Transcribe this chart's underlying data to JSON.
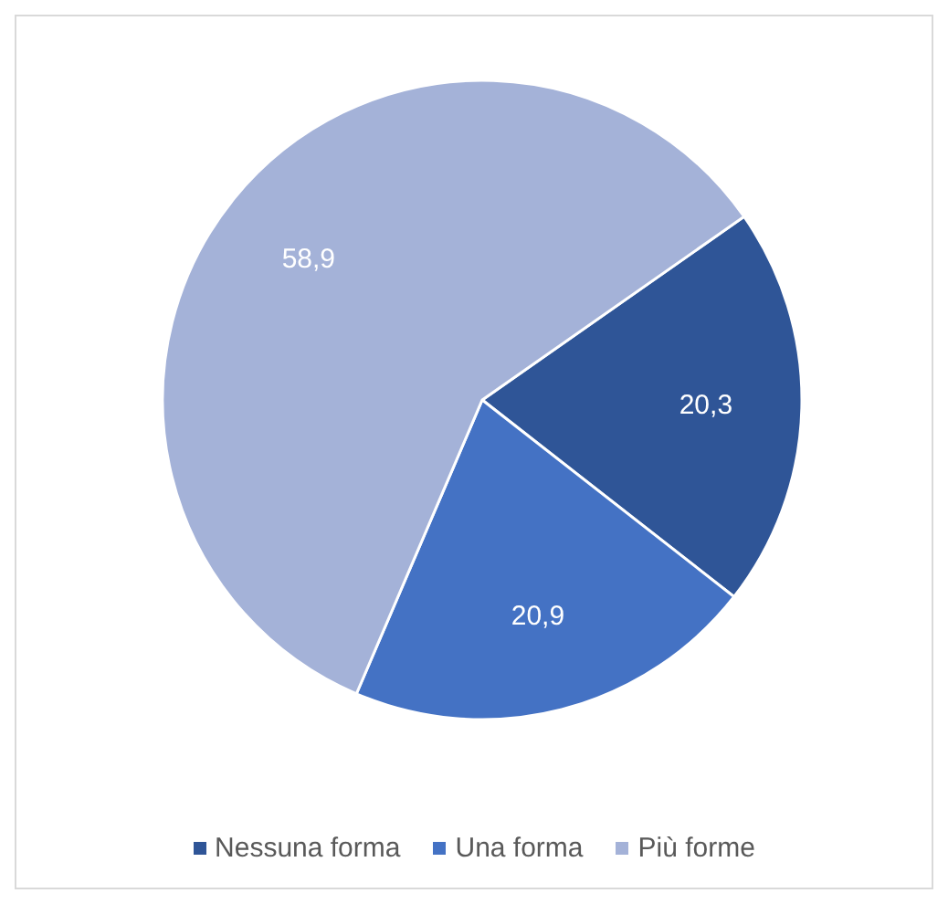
{
  "chart_data": {
    "type": "pie",
    "categories": [
      "Nessuna forma",
      "Una forma",
      "Più forme"
    ],
    "values": [
      20.3,
      20.9,
      58.9
    ],
    "colors": [
      "#2f5597",
      "#4472c4",
      "#a4b2d8"
    ],
    "value_labels": [
      "20,3",
      "20,9",
      "58,9"
    ],
    "legend": "bottom"
  }
}
